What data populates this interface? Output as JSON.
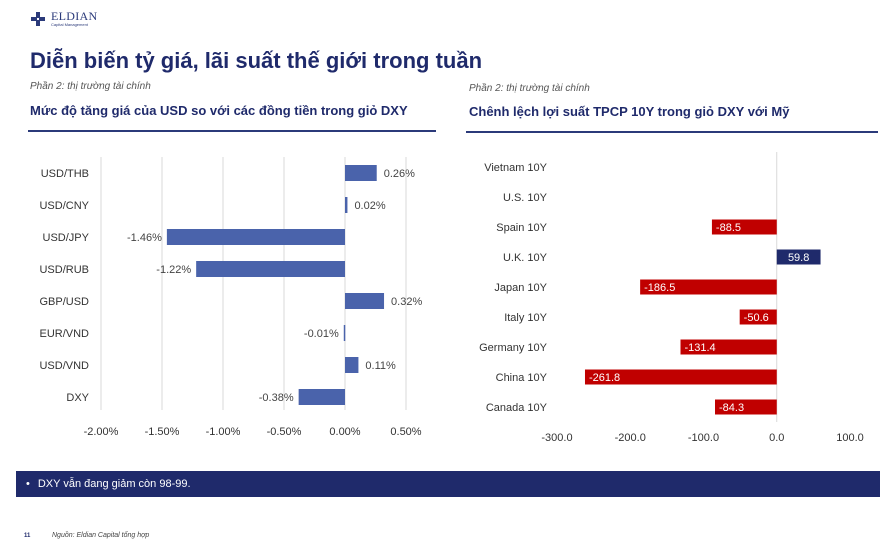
{
  "logo": {
    "name": "ELDIAN",
    "sub": "Capital Management"
  },
  "header": {
    "title": "Diễn biến tỷ giá, lãi suất thế giới trong tuần"
  },
  "left": {
    "section": "Phần 2: thị trường tài chính",
    "title": "Mức độ tăng giá của USD so với các đồng tiền trong giỏ DXY"
  },
  "right": {
    "section": "Phần 2: thị trường tài chính",
    "title": "Chênh lệch lợi suất TPCP 10Y trong giỏ DXY với Mỹ"
  },
  "chart_data": [
    {
      "type": "bar",
      "orientation": "horizontal",
      "categories": [
        "USD/THB",
        "USD/CNY",
        "USD/JPY",
        "USD/RUB",
        "GBP/USD",
        "EUR/VND",
        "USD/VND",
        "DXY"
      ],
      "values": [
        0.26,
        0.02,
        -1.46,
        -1.22,
        0.32,
        -0.01,
        0.11,
        -0.38
      ],
      "data_labels": [
        "0.26%",
        "0.02%",
        "-1.46%",
        "-1.22%",
        "0.32%",
        "-0.01%",
        "0.11%",
        "-0.38%"
      ],
      "xlim": [
        -2.0,
        0.5
      ],
      "ticks": [
        -2.0,
        -1.5,
        -1.0,
        -0.5,
        0.0,
        0.5
      ],
      "tick_labels": [
        "-2.00%",
        "-1.50%",
        "-1.00%",
        "-0.50%",
        "0.00%",
        "0.50%"
      ],
      "grid": true,
      "colors": {
        "bar": "#4a63ab",
        "grid": "#d9d9d9"
      }
    },
    {
      "type": "bar",
      "orientation": "horizontal",
      "categories": [
        "Vietnam 10Y",
        "U.S. 10Y",
        "Spain 10Y",
        "U.K. 10Y",
        "Japan 10Y",
        "Italy 10Y",
        "Germany 10Y",
        "China 10Y",
        "Canada 10Y"
      ],
      "values": [
        null,
        null,
        -88.5,
        59.8,
        -186.5,
        -50.6,
        -131.4,
        -261.8,
        -84.3
      ],
      "data_labels": [
        "",
        "",
        "-88.5",
        "59.8",
        "-186.5",
        "-50.6",
        "-131.4",
        "-261.8",
        "-84.3"
      ],
      "xlim": [
        -300,
        100
      ],
      "ticks": [
        -300,
        -200,
        -100,
        0,
        100
      ],
      "tick_labels": [
        "-300.0",
        "-200.0",
        "-100.0",
        "0.0",
        "100.0"
      ],
      "grid": false,
      "colors": {
        "negative": "#c00000",
        "positive": "#1f2a6b"
      }
    }
  ],
  "footer": {
    "bullet": "•",
    "note": "DXY vẫn đang giảm còn 98-99.",
    "page": "11",
    "source": "Nguồn: Eldian Capital tổng hợp"
  }
}
